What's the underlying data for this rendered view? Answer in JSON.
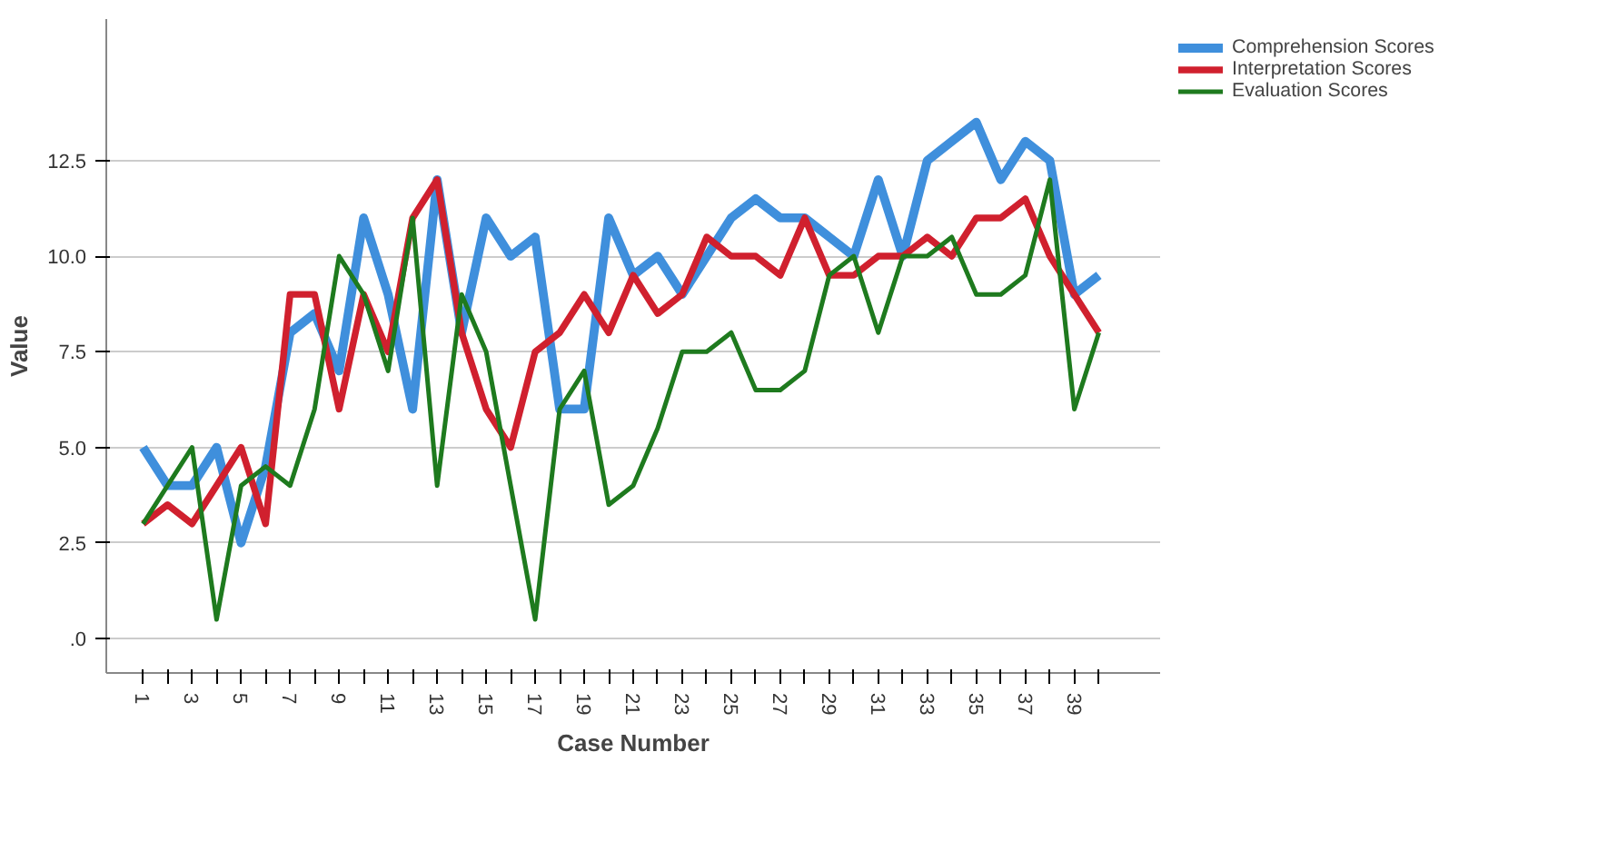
{
  "chart_data": {
    "type": "line",
    "xlabel": "Case Number",
    "ylabel": "Value",
    "x": [
      1,
      2,
      3,
      4,
      5,
      6,
      7,
      8,
      9,
      10,
      11,
      12,
      13,
      14,
      15,
      16,
      17,
      18,
      19,
      20,
      21,
      22,
      23,
      24,
      25,
      26,
      27,
      28,
      29,
      30,
      31,
      32,
      33,
      34,
      35,
      36,
      37,
      38,
      39,
      40
    ],
    "series": [
      {
        "name": "Comprehension Scores",
        "color": "#3f8fdc",
        "values": [
          5,
          4,
          4,
          5,
          2.5,
          4.5,
          8,
          8.5,
          7,
          11,
          9,
          6,
          12,
          8,
          11,
          10,
          10.5,
          6,
          6,
          11,
          9.5,
          10,
          9,
          10,
          11,
          11.5,
          11,
          11,
          10.5,
          10,
          12,
          10,
          12.5,
          13,
          13.5,
          12,
          13,
          12.5,
          9,
          9.5
        ]
      },
      {
        "name": "Interpretation Scores",
        "color": "#d0202e",
        "values": [
          3,
          3.5,
          3,
          4,
          5,
          3,
          9,
          9,
          6,
          9,
          7.5,
          11,
          12,
          8,
          6,
          5,
          7.5,
          8,
          9,
          8,
          9.5,
          8.5,
          9,
          10.5,
          10,
          10,
          9.5,
          11,
          9.5,
          9.5,
          10,
          10,
          10.5,
          10,
          11,
          11,
          11.5,
          10,
          9,
          8
        ]
      },
      {
        "name": "Evaluation Scores",
        "color": "#1e7a1e",
        "values": [
          3,
          4,
          5,
          0.5,
          4,
          4.5,
          4,
          6,
          10,
          9,
          7,
          11,
          4,
          9,
          7.5,
          4,
          0.5,
          6,
          7,
          3.5,
          4,
          5.5,
          7.5,
          7.5,
          8,
          6.5,
          6.5,
          7,
          9.5,
          10,
          8,
          10,
          10,
          10.5,
          9,
          9,
          9.5,
          12,
          6,
          8
        ]
      }
    ],
    "xlim": [
      -0.5,
      42.5
    ],
    "xticks": [
      1,
      {
        "value": 2,
        "label": null
      },
      3,
      {
        "value": 4,
        "label": null
      },
      5,
      {
        "value": 6,
        "label": null
      },
      7,
      {
        "value": 8,
        "label": null
      },
      9,
      {
        "value": 10,
        "label": null
      },
      11,
      {
        "value": 12,
        "label": null
      },
      13,
      {
        "value": 14,
        "label": null
      },
      15,
      {
        "value": 16,
        "label": null
      },
      17,
      {
        "value": 18,
        "label": null
      },
      19,
      {
        "value": 20,
        "label": null
      },
      21,
      {
        "value": 22,
        "label": null
      },
      23,
      {
        "value": 24,
        "label": null
      },
      25,
      {
        "value": 26,
        "label": null
      },
      27,
      {
        "value": 28,
        "label": null
      },
      29,
      {
        "value": 30,
        "label": null
      },
      31,
      {
        "value": 32,
        "label": null
      },
      33,
      {
        "value": 34,
        "label": null
      },
      35,
      {
        "value": 36,
        "label": null
      },
      37,
      {
        "value": 38,
        "label": null
      },
      39,
      {
        "value": 40,
        "label": null
      }
    ],
    "ylim": [
      -0.9,
      16.2
    ],
    "yticks": [
      {
        "value": 0,
        "label": ".0"
      },
      2.5,
      {
        "value": 5,
        "label": "5.0"
      },
      7.5,
      {
        "value": 10,
        "label": "10.0"
      },
      12.5
    ],
    "grid": "y",
    "legend": "top right",
    "marker": "none",
    "line_style": "solid"
  }
}
